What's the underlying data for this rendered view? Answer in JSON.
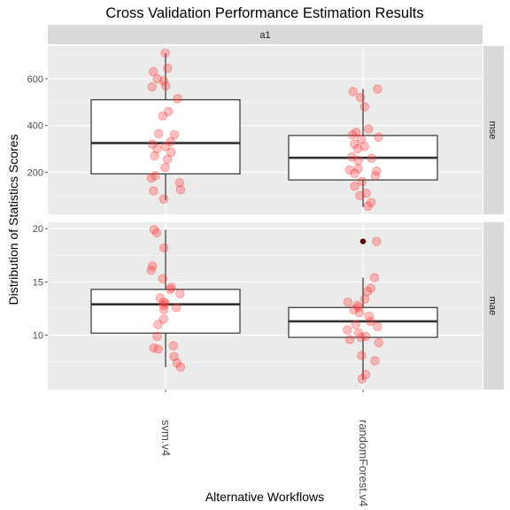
{
  "chart_data": {
    "type": "boxplot",
    "title": "Cross Validation Performance Estimation Results",
    "xlabel": "Alternative Workflows",
    "ylabel": "Distribution of Statistics Scores",
    "facet_column": "a1",
    "categories": [
      "svm.v4",
      "randomForest.v4"
    ],
    "grid": true,
    "jitter_color": "#ff3b3b",
    "outlier_color": "#5c0000",
    "panels": [
      {
        "label": "mse",
        "ylim": [
          20,
          740
        ],
        "yticks": [
          200,
          400,
          600
        ],
        "boxes": [
          {
            "category": "svm.v4",
            "whisker_low": 80,
            "q1": 193,
            "median": 325,
            "q3": 510,
            "whisker_high": 710,
            "outliers": []
          },
          {
            "category": "randomForest.v4",
            "whisker_low": 52,
            "q1": 167,
            "median": 262,
            "q3": 357,
            "whisker_high": 556,
            "outliers": []
          }
        ],
        "points": [
          [
            710,
            645,
            630,
            600,
            590,
            570,
            565,
            515,
            460,
            440,
            365,
            360,
            330,
            320,
            310,
            300,
            285,
            270,
            255,
            220,
            185,
            175,
            155,
            125,
            120,
            85
          ],
          [
            556,
            545,
            520,
            480,
            385,
            370,
            360,
            350,
            340,
            320,
            310,
            300,
            265,
            260,
            250,
            215,
            210,
            205,
            195,
            185,
            160,
            140,
            110,
            100,
            70,
            55
          ]
        ]
      },
      {
        "label": "mae",
        "ylim": [
          4.9,
          20.6
        ],
        "yticks": [
          10,
          15,
          20
        ],
        "boxes": [
          {
            "category": "svm.v4",
            "whisker_low": 7.0,
            "q1": 10.2,
            "median": 12.9,
            "q3": 14.3,
            "whisker_high": 19.9,
            "outliers": []
          },
          {
            "category": "randomForest.v4",
            "whisker_low": 5.8,
            "q1": 9.8,
            "median": 11.3,
            "q3": 12.6,
            "whisker_high": 15.4,
            "outliers": [
              18.8
            ]
          }
        ],
        "points": [
          [
            19.9,
            19.6,
            18.2,
            16.5,
            16.1,
            15.3,
            14.5,
            14.3,
            13.9,
            13.5,
            13.1,
            13.0,
            12.8,
            12.6,
            12.4,
            11.5,
            11.0,
            9.9,
            9.0,
            8.8,
            8.7,
            8.0,
            7.4,
            7.0
          ],
          [
            18.8,
            15.4,
            14.4,
            14.1,
            13.4,
            13.1,
            12.8,
            12.6,
            12.4,
            12.1,
            11.8,
            11.3,
            11.0,
            10.8,
            10.5,
            10.2,
            9.9,
            9.8,
            9.6,
            9.3,
            8.1,
            7.6,
            6.3,
            5.9
          ]
        ]
      }
    ]
  }
}
